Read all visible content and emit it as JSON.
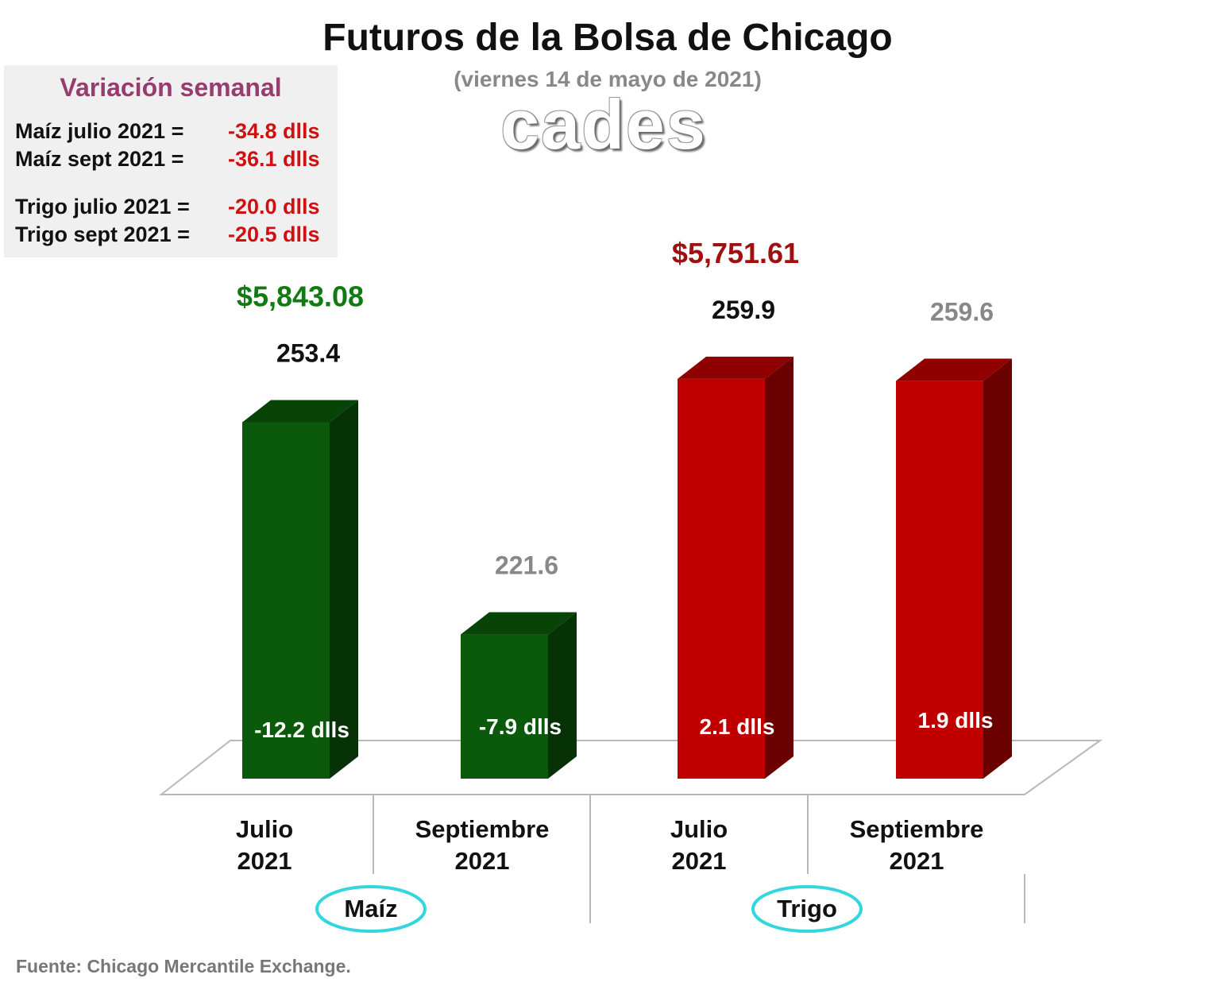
{
  "title": "Futuros de la Bolsa de Chicago",
  "subtitle": "(viernes 14 de mayo de 2021)",
  "logo_text": "cades",
  "weekly": {
    "title": "Variación semanal",
    "rows": [
      {
        "label": "Maíz julio 2021  =",
        "value": "-34.8 dlls"
      },
      {
        "label": "Maíz sept 2021  =",
        "value": "-36.1 dlls"
      },
      {
        "label": "Trigo julio 2021 =",
        "value": "-20.0 dlls"
      },
      {
        "label": "Trigo sept 2021 =",
        "value": "-20.5 dlls"
      }
    ]
  },
  "source": "Fuente: Chicago Mercantile Exchange.",
  "chart_data": {
    "type": "bar",
    "categories": [
      "Julio 2021",
      "Septiembre 2021",
      "Julio 2021",
      "Septiembre 2021"
    ],
    "groups": [
      {
        "name": "Maíz",
        "categories": [
          "Julio 2021",
          "Septiembre 2021"
        ]
      },
      {
        "name": "Trigo",
        "categories": [
          "Julio 2021",
          "Septiembre 2021"
        ]
      }
    ],
    "values": [
      253.4,
      221.6,
      259.9,
      259.6
    ],
    "value_labels": [
      "253.4",
      "221.6",
      "259.9",
      "259.6"
    ],
    "change_labels": [
      "-12.2 dlls",
      "-7.9 dlls",
      "2.1 dlls",
      "1.9 dlls"
    ],
    "price_labels": [
      {
        "text": "$5,843.08",
        "color": "#127a12",
        "bar": 0
      },
      {
        "text": "$5,751.61",
        "color": "#a01010",
        "bar": 2
      }
    ],
    "value_label_colors": [
      "#111111",
      "#888888",
      "#111111",
      "#888888"
    ],
    "bar_colors": [
      "#0b5a0b",
      "#0b5a0b",
      "#c00000",
      "#c00000"
    ],
    "ylim": [
      200,
      265
    ],
    "grid": false,
    "legend": "none"
  }
}
